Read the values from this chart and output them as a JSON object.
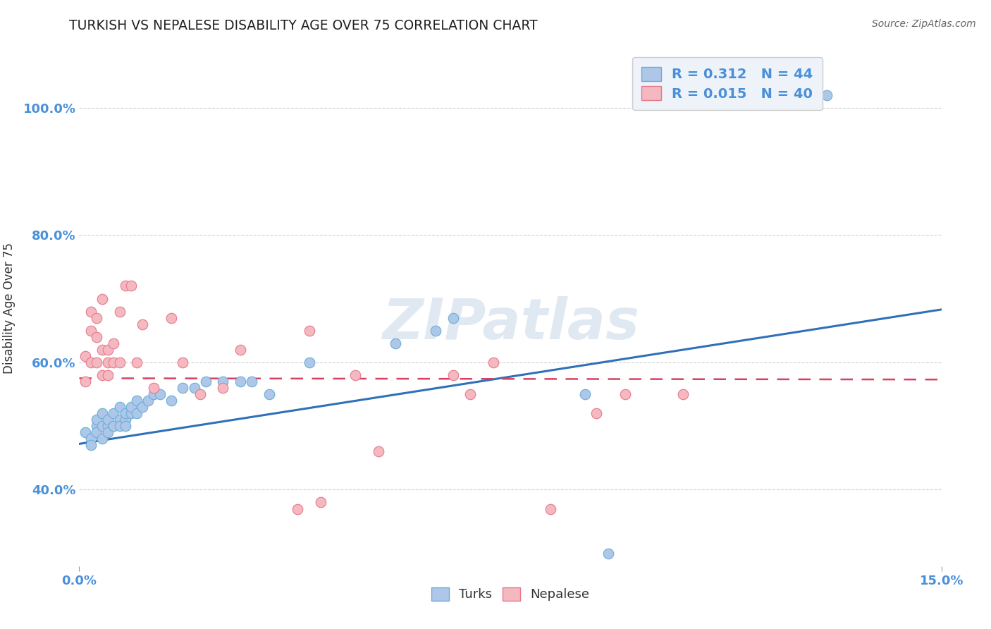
{
  "title": "TURKISH VS NEPALESE DISABILITY AGE OVER 75 CORRELATION CHART",
  "source_text": "Source: ZipAtlas.com",
  "ylabel": "Disability Age Over 75",
  "xlim": [
    0.0,
    0.15
  ],
  "ylim": [
    0.28,
    1.09
  ],
  "ytick_labels": [
    "40.0%",
    "60.0%",
    "80.0%",
    "100.0%"
  ],
  "ytick_values": [
    0.4,
    0.6,
    0.8,
    1.0
  ],
  "xtick_labels": [
    "0.0%",
    "15.0%"
  ],
  "xtick_values": [
    0.0,
    0.15
  ],
  "turks_R": "0.312",
  "turks_N": "44",
  "nepalese_R": "0.015",
  "nepalese_N": "40",
  "turks_color": "#aec6e8",
  "turks_edge_color": "#6aaed6",
  "nepalese_color": "#f4b8c1",
  "nepalese_edge_color": "#e8788a",
  "trend_turks_color": "#3070b8",
  "trend_nepalese_color": "#d84060",
  "watermark_color": "#c8d8e8",
  "background_color": "#ffffff",
  "turks_x": [
    0.001,
    0.002,
    0.002,
    0.003,
    0.003,
    0.003,
    0.004,
    0.004,
    0.004,
    0.005,
    0.005,
    0.005,
    0.006,
    0.006,
    0.006,
    0.007,
    0.007,
    0.007,
    0.008,
    0.008,
    0.008,
    0.009,
    0.009,
    0.01,
    0.01,
    0.011,
    0.012,
    0.013,
    0.014,
    0.016,
    0.018,
    0.02,
    0.022,
    0.025,
    0.028,
    0.03,
    0.033,
    0.04,
    0.055,
    0.062,
    0.065,
    0.088,
    0.092,
    0.13
  ],
  "turks_y": [
    0.49,
    0.48,
    0.47,
    0.5,
    0.49,
    0.51,
    0.5,
    0.48,
    0.52,
    0.5,
    0.49,
    0.51,
    0.5,
    0.5,
    0.52,
    0.51,
    0.5,
    0.53,
    0.51,
    0.52,
    0.5,
    0.52,
    0.53,
    0.52,
    0.54,
    0.53,
    0.54,
    0.55,
    0.55,
    0.54,
    0.56,
    0.56,
    0.57,
    0.57,
    0.57,
    0.57,
    0.55,
    0.6,
    0.63,
    0.65,
    0.67,
    0.55,
    0.3,
    1.02
  ],
  "nepalese_x": [
    0.001,
    0.001,
    0.002,
    0.002,
    0.002,
    0.003,
    0.003,
    0.003,
    0.004,
    0.004,
    0.004,
    0.005,
    0.005,
    0.005,
    0.006,
    0.006,
    0.007,
    0.007,
    0.008,
    0.009,
    0.01,
    0.011,
    0.013,
    0.016,
    0.018,
    0.021,
    0.025,
    0.028,
    0.038,
    0.04,
    0.042,
    0.048,
    0.052,
    0.065,
    0.068,
    0.072,
    0.082,
    0.09,
    0.095,
    0.105
  ],
  "nepalese_y": [
    0.57,
    0.61,
    0.6,
    0.65,
    0.68,
    0.6,
    0.64,
    0.67,
    0.58,
    0.62,
    0.7,
    0.58,
    0.6,
    0.62,
    0.6,
    0.63,
    0.6,
    0.68,
    0.72,
    0.72,
    0.6,
    0.66,
    0.56,
    0.67,
    0.6,
    0.55,
    0.56,
    0.62,
    0.37,
    0.65,
    0.38,
    0.58,
    0.46,
    0.58,
    0.55,
    0.6,
    0.37,
    0.52,
    0.55,
    0.55
  ],
  "turk_trendline": [
    0.472,
    0.683
  ],
  "nep_trendline": [
    0.575,
    0.573
  ],
  "legend_box_color": "#eef3fa",
  "legend_text_color": "#4a90d9",
  "watermark_text": "ZIPatlas"
}
